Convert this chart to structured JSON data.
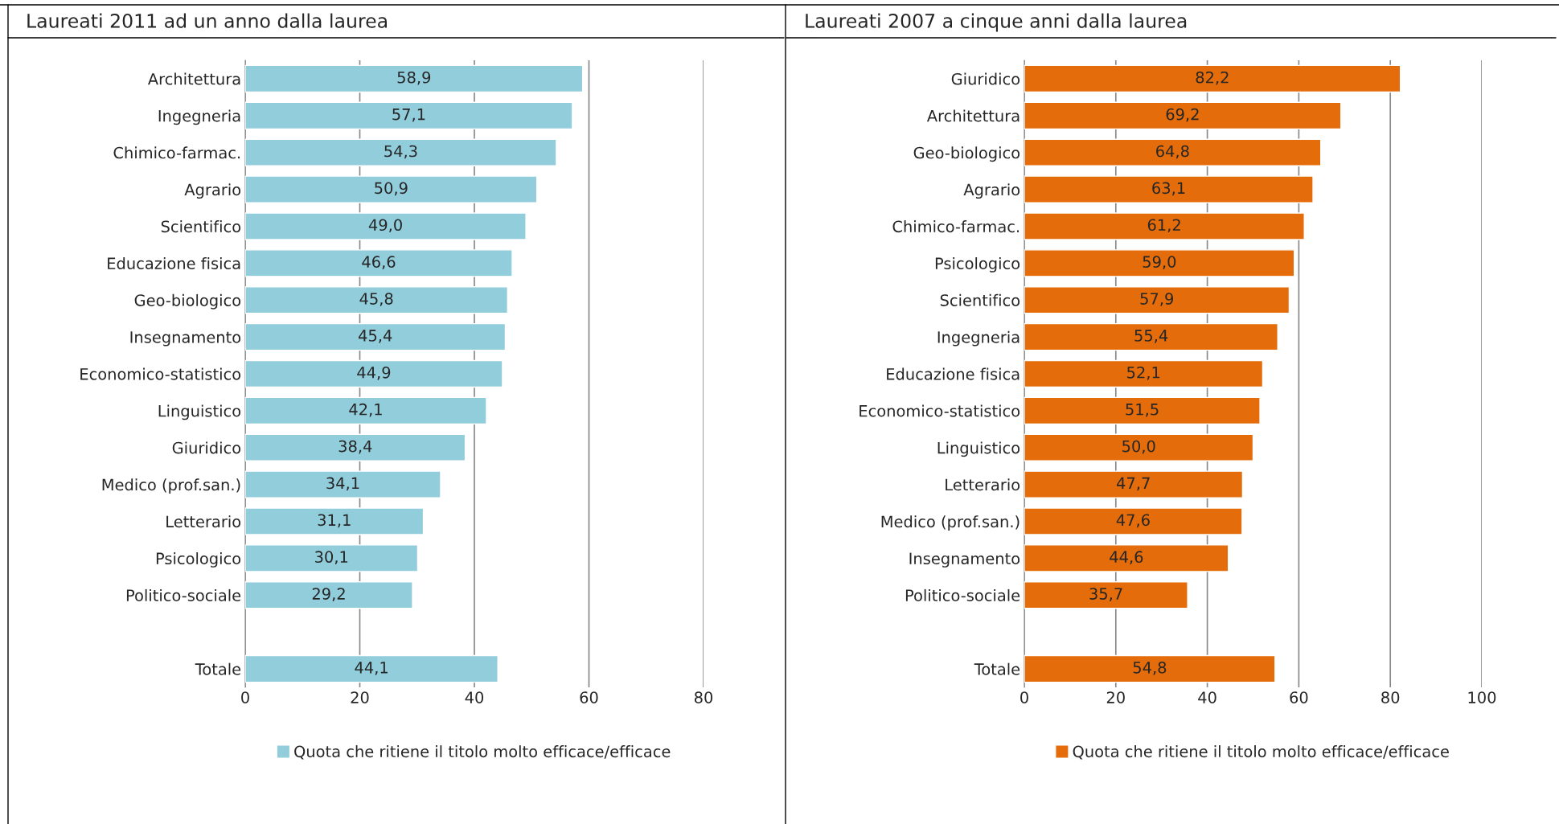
{
  "chart_data": [
    {
      "type": "bar",
      "orientation": "horizontal",
      "title": "Laureati 2011 ad un anno dalla laurea",
      "categories": [
        "Architettura",
        "Ingegneria",
        "Chimico-farmac.",
        "Agrario",
        "Scientifico",
        "Educazione fisica",
        "Geo-biologico",
        "Insegnamento",
        "Economico-statistico",
        "Linguistico",
        "Giuridico",
        "Medico (prof.san.)",
        "Letterario",
        "Psicologico",
        "Politico-sociale",
        null,
        "Totale"
      ],
      "series": [
        {
          "name": "Quota che ritiene il titolo molto efficace/efficace",
          "color": "#92cddc",
          "values": [
            58.9,
            57.1,
            54.3,
            50.9,
            49.0,
            46.6,
            45.8,
            45.4,
            44.9,
            42.1,
            38.4,
            34.1,
            31.1,
            30.1,
            29.2,
            null,
            44.1
          ],
          "value_labels": [
            "58,9",
            "57,1",
            "54,3",
            "50,9",
            "49,0",
            "46,6",
            "45,8",
            "45,4",
            "44,9",
            "42,1",
            "38,4",
            "34,1",
            "31,1",
            "30,1",
            "29,2",
            null,
            "44,1"
          ]
        }
      ],
      "xlim": [
        0,
        80
      ],
      "xticks": [
        0,
        20,
        40,
        60,
        80
      ],
      "grid": "x",
      "legend": "bottom"
    },
    {
      "type": "bar",
      "orientation": "horizontal",
      "title": "Laureati 2007 a cinque anni dalla laurea",
      "categories": [
        "Giuridico",
        "Architettura",
        "Geo-biologico",
        "Agrario",
        "Chimico-farmac.",
        "Psicologico",
        "Scientifico",
        "Ingegneria",
        "Educazione fisica",
        "Economico-statistico",
        "Linguistico",
        "Letterario",
        "Medico (prof.san.)",
        "Insegnamento",
        "Politico-sociale",
        null,
        "Totale"
      ],
      "series": [
        {
          "name": "Quota che ritiene il titolo molto efficace/efficace",
          "color": "#e46c0a",
          "values": [
            82.2,
            69.2,
            64.8,
            63.1,
            61.2,
            59.0,
            57.9,
            55.4,
            52.1,
            51.5,
            50.0,
            47.7,
            47.6,
            44.6,
            35.7,
            null,
            54.8
          ],
          "value_labels": [
            "82,2",
            "69,2",
            "64,8",
            "63,1",
            "61,2",
            "59,0",
            "57,9",
            "55,4",
            "52,1",
            "51,5",
            "50,0",
            "47,7",
            "47,6",
            "44,6",
            "35,7",
            null,
            "54,8"
          ]
        }
      ],
      "xlim": [
        0,
        100
      ],
      "xticks": [
        0,
        20,
        40,
        60,
        80,
        100
      ],
      "grid": "x",
      "legend": "bottom"
    }
  ]
}
